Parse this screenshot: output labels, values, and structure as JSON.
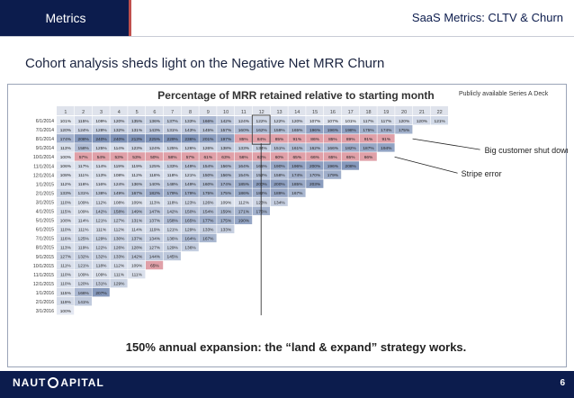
{
  "header": {
    "active_tab": "Metrics",
    "title": "SaaS Metrics: CLTV & Churn"
  },
  "slide": {
    "subtitle": "Cohort analysis sheds light on the Negative Net MRR Churn",
    "source_note": "Publicly available Series A Deck",
    "page_number": "6"
  },
  "footer": {
    "logo_text_left": "NAUT",
    "logo_text_right": "APITAL"
  },
  "chart_data": {
    "type": "heatmap",
    "title": "Percentage of MRR retained relative to starting month",
    "columns": [
      "1",
      "2",
      "3",
      "4",
      "5",
      "6",
      "7",
      "8",
      "9",
      "10",
      "11",
      "12",
      "13",
      "14",
      "15",
      "16",
      "17",
      "18",
      "19",
      "20",
      "21",
      "22"
    ],
    "rows": [
      {
        "cohort": "6/1/2014",
        "values": [
          "101%",
          "115%",
          "109%",
          "120%",
          "135%",
          "136%",
          "137%",
          "133%",
          "166%",
          "142%",
          "124%",
          "122%",
          "122%",
          "120%",
          "107%",
          "107%",
          "101%",
          "117%",
          "117%",
          "120%",
          "120%",
          "121%"
        ]
      },
      {
        "cohort": "7/1/2014",
        "values": [
          "120%",
          "124%",
          "128%",
          "132%",
          "131%",
          "143%",
          "131%",
          "143%",
          "145%",
          "157%",
          "160%",
          "162%",
          "159%",
          "165%",
          "196%",
          "196%",
          "198%",
          "175%",
          "174%",
          "175%"
        ]
      },
      {
        "cohort": "8/1/2014",
        "values": [
          "174%",
          "208%",
          "240%",
          "240%",
          "213%",
          "225%",
          "229%",
          "236%",
          "201%",
          "197%",
          "85%",
          "84%",
          "85%",
          "91%",
          "86%",
          "85%",
          "89%",
          "91%",
          "91%"
        ]
      },
      {
        "cohort": "9/1/2014",
        "values": [
          "113%",
          "158%",
          "125%",
          "114%",
          "123%",
          "124%",
          "125%",
          "126%",
          "126%",
          "138%",
          "133%",
          "134%",
          "151%",
          "161%",
          "162%",
          "166%",
          "182%",
          "187%",
          "194%"
        ]
      },
      {
        "cohort": "10/1/2014",
        "values": [
          "100%",
          "57%",
          "54%",
          "53%",
          "53%",
          "50%",
          "58%",
          "57%",
          "61%",
          "63%",
          "56%",
          "63%",
          "60%",
          "65%",
          "66%",
          "65%",
          "65%",
          "66%"
        ]
      },
      {
        "cohort": "11/1/2014",
        "values": [
          "106%",
          "117%",
          "114%",
          "119%",
          "119%",
          "125%",
          "133%",
          "149%",
          "154%",
          "156%",
          "164%",
          "165%",
          "190%",
          "196%",
          "200%",
          "196%",
          "208%"
        ]
      },
      {
        "cohort": "12/1/2014",
        "values": [
          "108%",
          "111%",
          "113%",
          "108%",
          "112%",
          "118%",
          "118%",
          "121%",
          "150%",
          "156%",
          "154%",
          "152%",
          "158%",
          "174%",
          "170%",
          "179%"
        ]
      },
      {
        "cohort": "1/1/2015",
        "values": [
          "112%",
          "116%",
          "116%",
          "124%",
          "136%",
          "140%",
          "148%",
          "149%",
          "160%",
          "174%",
          "185%",
          "200%",
          "200%",
          "185%",
          "203%"
        ]
      },
      {
        "cohort": "2/1/2015",
        "values": [
          "133%",
          "131%",
          "138%",
          "149%",
          "167%",
          "182%",
          "179%",
          "179%",
          "175%",
          "175%",
          "186%",
          "182%",
          "189%",
          "167%"
        ]
      },
      {
        "cohort": "3/1/2015",
        "values": [
          "110%",
          "109%",
          "112%",
          "108%",
          "109%",
          "113%",
          "118%",
          "123%",
          "126%",
          "109%",
          "112%",
          "123%",
          "134%"
        ]
      },
      {
        "cohort": "4/1/2015",
        "values": [
          "115%",
          "109%",
          "142%",
          "158%",
          "149%",
          "147%",
          "142%",
          "150%",
          "154%",
          "159%",
          "171%",
          "176%"
        ]
      },
      {
        "cohort": "5/1/2015",
        "values": [
          "108%",
          "114%",
          "121%",
          "127%",
          "131%",
          "137%",
          "158%",
          "165%",
          "177%",
          "175%",
          "190%"
        ]
      },
      {
        "cohort": "6/1/2015",
        "values": [
          "110%",
          "111%",
          "111%",
          "112%",
          "114%",
          "119%",
          "121%",
          "129%",
          "133%",
          "133%"
        ]
      },
      {
        "cohort": "7/1/2015",
        "values": [
          "116%",
          "125%",
          "129%",
          "130%",
          "137%",
          "134%",
          "136%",
          "164%",
          "167%"
        ]
      },
      {
        "cohort": "8/1/2015",
        "values": [
          "113%",
          "119%",
          "122%",
          "126%",
          "128%",
          "127%",
          "129%",
          "136%"
        ]
      },
      {
        "cohort": "9/1/2015",
        "values": [
          "127%",
          "132%",
          "132%",
          "133%",
          "142%",
          "144%",
          "145%"
        ]
      },
      {
        "cohort": "10/1/2015",
        "values": [
          "111%",
          "121%",
          "118%",
          "112%",
          "109%",
          "65%"
        ]
      },
      {
        "cohort": "11/1/2015",
        "values": [
          "110%",
          "109%",
          "109%",
          "111%",
          "111%"
        ]
      },
      {
        "cohort": "12/1/2015",
        "values": [
          "110%",
          "120%",
          "131%",
          "129%"
        ]
      },
      {
        "cohort": "1/1/2016",
        "values": [
          "115%",
          "166%",
          "207%"
        ]
      },
      {
        "cohort": "2/1/2016",
        "values": [
          "119%",
          "141%"
        ]
      },
      {
        "cohort": "3/1/2016",
        "values": [
          "100%"
        ]
      }
    ],
    "highlight_rows": [
      "8/1/2014",
      "10/1/2014"
    ],
    "highlight_cells": [
      {
        "cohort": "10/1/2015",
        "column": "6"
      }
    ],
    "annotations": [
      "Big customer shut down",
      "Stripe error"
    ],
    "caption": "150% annual expansion: the “land & expand” strategy works.",
    "colors": {
      "low": "#e8ecf4",
      "high": "#7f93b8",
      "highlight": "#e0a0a8",
      "header_bg": "#dfe3ec"
    }
  }
}
